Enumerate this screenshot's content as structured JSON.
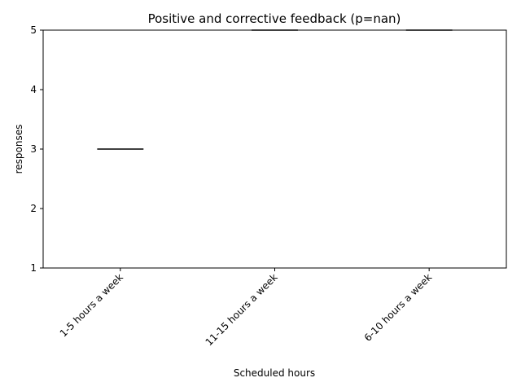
{
  "chart_data": {
    "type": "box",
    "title": "Positive and corrective feedback (p=nan)",
    "xlabel": "Scheduled hours",
    "ylabel": "responses",
    "ylim": [
      1,
      5
    ],
    "yticks": [
      1,
      2,
      3,
      4,
      5
    ],
    "categories": [
      "1-5 hours a week",
      "11-15 hours a week",
      "6-10 hours a week"
    ],
    "values": [
      3,
      5,
      5
    ],
    "grid": false,
    "legend": "none",
    "colors": {
      "mark": "#000000",
      "axis": "#000000"
    }
  }
}
